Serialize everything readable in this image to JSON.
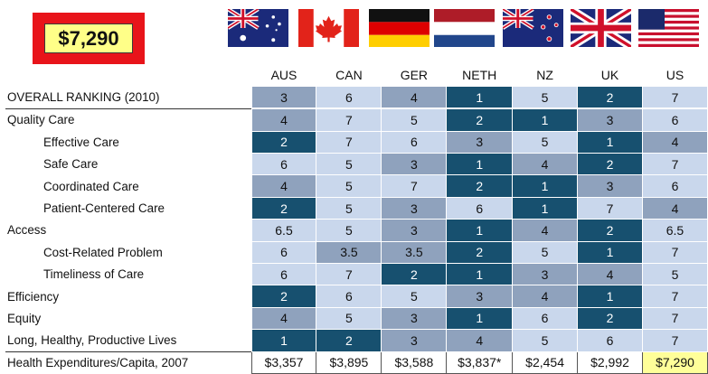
{
  "highlight": {
    "value": "$7,290"
  },
  "columns": [
    "AUS",
    "CAN",
    "GER",
    "NETH",
    "NZ",
    "UK",
    "US"
  ],
  "flags": [
    "australia-flag-icon",
    "canada-flag-icon",
    "germany-flag-icon",
    "netherlands-flag-icon",
    "new-zealand-flag-icon",
    "uk-flag-icon",
    "us-flag-icon"
  ],
  "colors": {
    "dark": "#17506f",
    "mid": "#8fa2bd",
    "light": "#c9d7ec",
    "highlight": "#ffff99",
    "box": "#e8141a"
  },
  "rows": [
    {
      "label": "OVERALL RANKING (2010)",
      "indent": 0,
      "values": [
        "3",
        "6",
        "4",
        "1",
        "5",
        "2",
        "7"
      ],
      "shades": [
        "mid",
        "light",
        "mid",
        "dark",
        "light",
        "dark",
        "light"
      ]
    },
    {
      "label": "Quality Care",
      "indent": 0,
      "values": [
        "4",
        "7",
        "5",
        "2",
        "1",
        "3",
        "6"
      ],
      "shades": [
        "mid",
        "light",
        "light",
        "dark",
        "dark",
        "mid",
        "light"
      ]
    },
    {
      "label": "Effective Care",
      "indent": 1,
      "values": [
        "2",
        "7",
        "6",
        "3",
        "5",
        "1",
        "4"
      ],
      "shades": [
        "dark",
        "light",
        "light",
        "mid",
        "light",
        "dark",
        "mid"
      ]
    },
    {
      "label": "Safe Care",
      "indent": 1,
      "values": [
        "6",
        "5",
        "3",
        "1",
        "4",
        "2",
        "7"
      ],
      "shades": [
        "light",
        "light",
        "mid",
        "dark",
        "mid",
        "dark",
        "light"
      ]
    },
    {
      "label": "Coordinated Care",
      "indent": 1,
      "values": [
        "4",
        "5",
        "7",
        "2",
        "1",
        "3",
        "6"
      ],
      "shades": [
        "mid",
        "light",
        "light",
        "dark",
        "dark",
        "mid",
        "light"
      ]
    },
    {
      "label": "Patient-Centered Care",
      "indent": 1,
      "values": [
        "2",
        "5",
        "3",
        "6",
        "1",
        "7",
        "4"
      ],
      "shades": [
        "dark",
        "light",
        "mid",
        "light",
        "dark",
        "light",
        "mid"
      ]
    },
    {
      "label": "Access",
      "indent": 0,
      "values": [
        "6.5",
        "5",
        "3",
        "1",
        "4",
        "2",
        "6.5"
      ],
      "shades": [
        "light",
        "light",
        "mid",
        "dark",
        "mid",
        "dark",
        "light"
      ]
    },
    {
      "label": "Cost-Related Problem",
      "indent": 1,
      "values": [
        "6",
        "3.5",
        "3.5",
        "2",
        "5",
        "1",
        "7"
      ],
      "shades": [
        "light",
        "mid",
        "mid",
        "dark",
        "light",
        "dark",
        "light"
      ]
    },
    {
      "label": "Timeliness of Care",
      "indent": 1,
      "values": [
        "6",
        "7",
        "2",
        "1",
        "3",
        "4",
        "5"
      ],
      "shades": [
        "light",
        "light",
        "dark",
        "dark",
        "mid",
        "mid",
        "light"
      ]
    },
    {
      "label": "Efficiency",
      "indent": 0,
      "values": [
        "2",
        "6",
        "5",
        "3",
        "4",
        "1",
        "7"
      ],
      "shades": [
        "dark",
        "light",
        "light",
        "mid",
        "mid",
        "dark",
        "light"
      ]
    },
    {
      "label": "Equity",
      "indent": 0,
      "values": [
        "4",
        "5",
        "3",
        "1",
        "6",
        "2",
        "7"
      ],
      "shades": [
        "mid",
        "light",
        "mid",
        "dark",
        "light",
        "dark",
        "light"
      ]
    },
    {
      "label": "Long, Healthy, Productive Lives",
      "indent": 0,
      "values": [
        "1",
        "2",
        "3",
        "4",
        "5",
        "6",
        "7"
      ],
      "shades": [
        "dark",
        "dark",
        "mid",
        "mid",
        "light",
        "light",
        "light"
      ]
    },
    {
      "label": "Health Expenditures/Capita, 2007",
      "indent": 0,
      "values": [
        "$3,357",
        "$3,895",
        "$3,588",
        "$3,837*",
        "$2,454",
        "$2,992",
        "$7,290"
      ],
      "shades": [
        "none",
        "none",
        "none",
        "none",
        "none",
        "none",
        "highlight"
      ]
    }
  ]
}
